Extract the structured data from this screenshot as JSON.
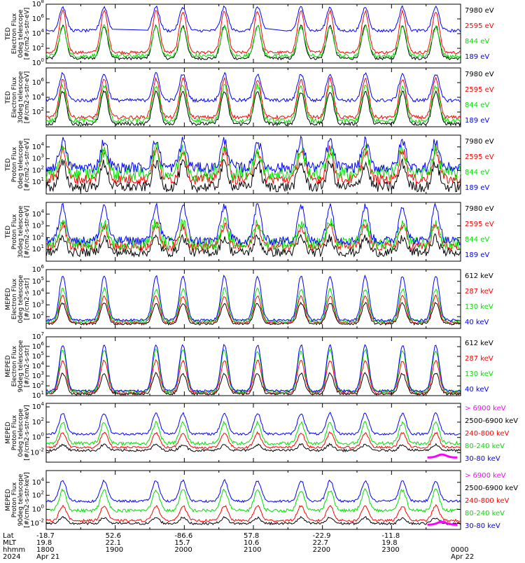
{
  "colors": {
    "black": "#000000",
    "red": "#ff0000",
    "green": "#00e000",
    "blue": "#0000ff",
    "magenta": "#ff00ff"
  },
  "panels": [
    {
      "ylabel": [
        "TED",
        "Electron Flux",
        "0deg telescope",
        "[#/cm2-s-str-eV]"
      ],
      "yticks": [
        {
          "exp": "0",
          "pos": 0
        },
        {
          "exp": "2",
          "pos": 0.25
        },
        {
          "exp": "4",
          "pos": 0.5
        },
        {
          "exp": "6",
          "pos": 0.75
        },
        {
          "exp": "8",
          "pos": 1
        }
      ],
      "legend": [
        {
          "text": "7980 eV",
          "color": "black"
        },
        {
          "text": "2595 eV",
          "color": "red"
        },
        {
          "text": "844 eV",
          "color": "green"
        },
        {
          "text": "189 eV",
          "color": "blue"
        }
      ]
    },
    {
      "ylabel": [
        "TED",
        "Electron Flux",
        "30deg telescope",
        "[#/cm2-s-str-eV]"
      ],
      "yticks": [
        {
          "exp": "2",
          "pos": 0.25
        },
        {
          "exp": "4",
          "pos": 0.5
        },
        {
          "exp": "6",
          "pos": 0.75
        }
      ],
      "legend": [
        {
          "text": "7980 eV",
          "color": "black"
        },
        {
          "text": "2595 eV",
          "color": "red"
        },
        {
          "text": "844 eV",
          "color": "green"
        },
        {
          "text": "189 eV",
          "color": "blue"
        }
      ]
    },
    {
      "ylabel": [
        "TED",
        "Proton Flux",
        "0deg telescope",
        "[#/cm2-s-str-eV]"
      ],
      "yticks": [
        {
          "exp": "1",
          "pos": 0.2
        },
        {
          "exp": "2",
          "pos": 0.4
        },
        {
          "exp": "3",
          "pos": 0.6
        },
        {
          "exp": "4",
          "pos": 0.8
        }
      ],
      "legend": [
        {
          "text": "7980 eV",
          "color": "black"
        },
        {
          "text": "2595 eV",
          "color": "red"
        },
        {
          "text": "844 eV",
          "color": "green"
        },
        {
          "text": "189 eV",
          "color": "blue"
        }
      ]
    },
    {
      "ylabel": [
        "TED",
        "Proton Flux",
        "30deg telescope",
        "[#/cm2-s-str-eV]"
      ],
      "yticks": [
        {
          "exp": "1",
          "pos": 0.2
        },
        {
          "exp": "2",
          "pos": 0.4
        },
        {
          "exp": "3",
          "pos": 0.6
        },
        {
          "exp": "4",
          "pos": 0.8
        }
      ],
      "legend": [
        {
          "text": "7980 eV",
          "color": "black"
        },
        {
          "text": "2595 eV",
          "color": "red"
        },
        {
          "text": "844 eV",
          "color": "green"
        },
        {
          "text": "189 eV",
          "color": "blue"
        }
      ]
    },
    {
      "ylabel": [
        "MEPED",
        "Electron Flux",
        "0deg telescope",
        "[#/cm2-s-str]"
      ],
      "yticks": [
        {
          "exp": "2",
          "pos": 0.2
        },
        {
          "exp": "3",
          "pos": 0.4
        },
        {
          "exp": "4",
          "pos": 0.6
        },
        {
          "exp": "5",
          "pos": 0.8
        },
        {
          "exp": "6",
          "pos": 1
        }
      ],
      "legend": [
        {
          "text": "612 keV",
          "color": "black"
        },
        {
          "text": "287 keV",
          "color": "red"
        },
        {
          "text": "130 keV",
          "color": "green"
        },
        {
          "text": "40 keV",
          "color": "blue"
        }
      ]
    },
    {
      "ylabel": [
        "MEPED",
        "Electron Flux",
        "90deg telescope",
        "[#/cm2-s-str]"
      ],
      "yticks": [
        {
          "exp": "1",
          "pos": 0
        },
        {
          "exp": "2",
          "pos": 0.1667
        },
        {
          "exp": "3",
          "pos": 0.3333
        },
        {
          "exp": "4",
          "pos": 0.5
        },
        {
          "exp": "5",
          "pos": 0.6667
        },
        {
          "exp": "6",
          "pos": 0.8333
        },
        {
          "exp": "7",
          "pos": 1
        }
      ],
      "legend": [
        {
          "text": "612 keV",
          "color": "black"
        },
        {
          "text": "287 keV",
          "color": "red"
        },
        {
          "text": "130 keV",
          "color": "green"
        },
        {
          "text": "40 keV",
          "color": "blue"
        }
      ]
    },
    {
      "ylabel": [
        "MEPED",
        "Proton Flux",
        "0deg telescope",
        "[#/cm2-s-str-keV]"
      ],
      "yticks": [
        {
          "exp": "-2",
          "pos": 0.16
        },
        {
          "exp": "0",
          "pos": 0.42
        },
        {
          "exp": "2",
          "pos": 0.68
        },
        {
          "exp": "4",
          "pos": 0.94
        }
      ],
      "legend": [
        {
          "text": "> 6900 keV",
          "color": "magenta"
        },
        {
          "text": "2500-6900 keV",
          "color": "black"
        },
        {
          "text": "240-800 keV",
          "color": "red"
        },
        {
          "text": "80-240 keV",
          "color": "green"
        },
        {
          "text": "30-80 keV",
          "color": "blue"
        }
      ]
    },
    {
      "ylabel": [
        "MEPED",
        "Proton Flux",
        "90deg telescope",
        "[#/cm2-s-str-keV]"
      ],
      "yticks": [
        {
          "exp": "-2",
          "pos": 0.1
        },
        {
          "exp": "0",
          "pos": 0.34
        },
        {
          "exp": "2",
          "pos": 0.58
        },
        {
          "exp": "4",
          "pos": 0.8
        }
      ],
      "legend": [
        {
          "text": "> 6900 keV",
          "color": "magenta"
        },
        {
          "text": "2500-6900 keV",
          "color": "black"
        },
        {
          "text": "240-800 keV",
          "color": "red"
        },
        {
          "text": "80-240 keV",
          "color": "green"
        },
        {
          "text": "30-80 keV",
          "color": "blue"
        }
      ]
    }
  ],
  "axis": {
    "row_labels": [
      "Lat",
      "MLT",
      "hhmm",
      "2024"
    ],
    "columns": [
      {
        "frac": 0.0,
        "lat": "-18.7",
        "mlt": "19.8",
        "hhmm": "1800",
        "date": "Apr 21"
      },
      {
        "frac": 0.1667,
        "lat": "52.6",
        "mlt": "22.1",
        "hhmm": "1900",
        "date": ""
      },
      {
        "frac": 0.3333,
        "lat": "-86.6",
        "mlt": "15.7",
        "hhmm": "2000",
        "date": ""
      },
      {
        "frac": 0.5,
        "lat": "57.8",
        "mlt": "10.6",
        "hhmm": "2100",
        "date": ""
      },
      {
        "frac": 0.6667,
        "lat": "-22.9",
        "mlt": "22.7",
        "hhmm": "2200",
        "date": ""
      },
      {
        "frac": 0.8333,
        "lat": "-11.8",
        "mlt": "19.8",
        "hhmm": "2300",
        "date": ""
      },
      {
        "frac": 1.0,
        "lat": "",
        "mlt": "",
        "hhmm": "0000",
        "date": "Apr 22"
      }
    ]
  },
  "chart_data": {
    "type": "line",
    "x_range": [
      "2024-04-21 18:00",
      "2024-04-22 00:00"
    ],
    "log_scale": true,
    "grid": false,
    "legend_placement": "right",
    "pass_peaks_hhmm": [
      "18:15",
      "18:50",
      "19:35",
      "20:00",
      "20:35",
      "21:05",
      "21:40",
      "22:10",
      "22:40",
      "23:15",
      "23:45"
    ]
  }
}
